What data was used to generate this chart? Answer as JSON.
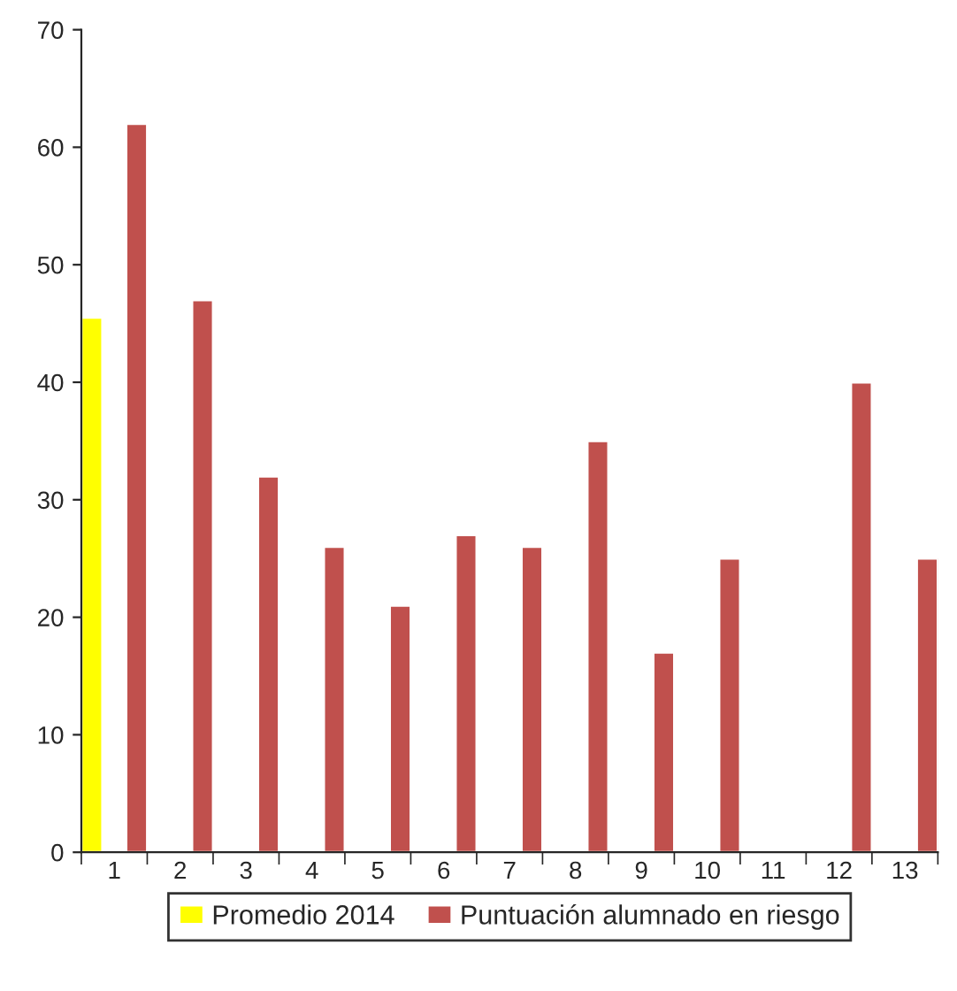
{
  "chart_data": {
    "type": "bar",
    "categories": [
      "1",
      "2",
      "3",
      "4",
      "5",
      "6",
      "7",
      "8",
      "9",
      "10",
      "11",
      "12",
      "13"
    ],
    "series": [
      {
        "name": "Promedio 2014",
        "color": "#ffff00",
        "values": [
          45.5,
          null,
          null,
          null,
          null,
          null,
          null,
          null,
          null,
          null,
          null,
          null,
          null
        ]
      },
      {
        "name": "Puntuación alumnado en riesgo",
        "color": "#c0504d",
        "values": [
          62,
          47,
          32,
          26,
          21,
          27,
          26,
          35,
          17,
          25,
          null,
          40,
          25
        ]
      }
    ],
    "ylim": [
      0,
      70
    ],
    "yticks": [
      0,
      10,
      20,
      30,
      40,
      50,
      60,
      70
    ],
    "grid": false,
    "legend": "bottom"
  }
}
